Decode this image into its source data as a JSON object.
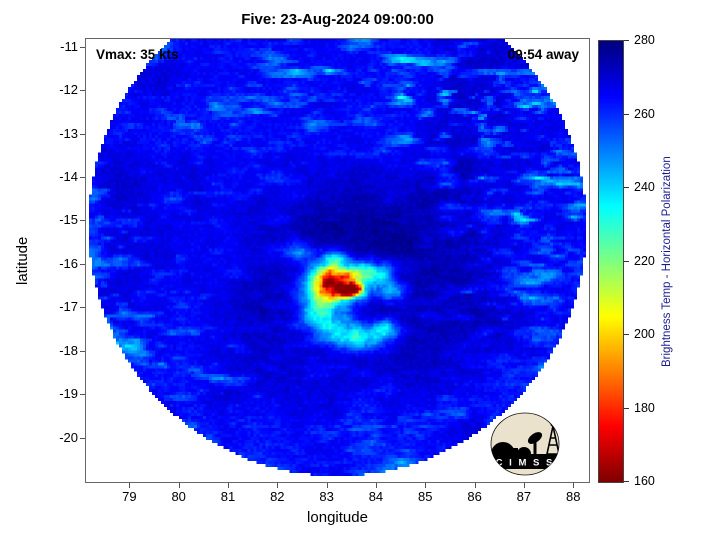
{
  "title": "Five: 23-Aug-2024 09:00:00",
  "plot": {
    "vmax_label": "Vmax: 35 kts",
    "eta_label": "09:54 away"
  },
  "axes": {
    "xlabel": "longitude",
    "ylabel": "latitude",
    "x_ticks": [
      "79",
      "80",
      "81",
      "82",
      "83",
      "84",
      "85",
      "86",
      "87",
      "88"
    ],
    "y_ticks": [
      "-11",
      "-12",
      "-13",
      "-14",
      "-15",
      "-16",
      "-17",
      "-18",
      "-19",
      "-20"
    ]
  },
  "colorbar": {
    "label": "Brightness Temp - Horizontal Polarization",
    "ticks": [
      "280",
      "260",
      "240",
      "220",
      "200",
      "180",
      "160"
    ],
    "range": [
      160,
      280
    ]
  },
  "logo": {
    "text": "C I M S S"
  },
  "colors": {
    "swath_background_blue": "#0000ff",
    "deep_blue_max": "#000080",
    "hot_spot_red": "#cc0000",
    "page_background": "#ffffff",
    "logo_parchment": "#eae2cd",
    "colorbar_label_navy": "#1b1b8f"
  },
  "chart_data": {
    "type": "heatmap",
    "title": "Five: 23-Aug-2024 09:00:00",
    "xlabel": "longitude",
    "ylabel": "latitude",
    "xlim": [
      78.1,
      88.3
    ],
    "ylim": [
      -21.0,
      -10.8
    ],
    "x_ticks": [
      79,
      80,
      81,
      82,
      83,
      84,
      85,
      86,
      87,
      88
    ],
    "y_ticks": [
      -11,
      -12,
      -13,
      -14,
      -15,
      -16,
      -17,
      -18,
      -19,
      -20
    ],
    "annotations": [
      "Vmax: 35 kts",
      "09:54 away"
    ],
    "colorbar": {
      "label": "Brightness Temp - Horizontal Polarization",
      "min": 160,
      "max": 280,
      "tick_step": 20,
      "colormap": "jet-reversed (280 K = dark blue, 160 K = dark red)"
    },
    "description": "Circular microwave-imager swath of Tropical Cyclone Five (Vmax 35 kts) at 09:00 UTC 23 Aug 2024. Background brightness temperatures ~255-275 K (blue), cold convective streaks 230-250 K (cyan) across the north, north-east, west edge and south, and a central convective burst near 83.4E / 16.5S with minimum brightness temperatures ~165 K (yellow-orange-red core) plus a cyan comma tail curling to the south-east.",
    "swath": {
      "center_lon": 83.2,
      "center_lat": -15.1,
      "radius_lon_deg": 5.05,
      "radius_lat_deg": 5.76
    },
    "storm_center": {
      "lon": 83.4,
      "lat": -16.5,
      "min_brightness_temp_K": 165
    },
    "field": {
      "base_temp": 265,
      "streak_base": 0.28,
      "streak_regions": [
        [
          83.5,
          -11.7,
          2.0,
          0.8,
          0.9
        ],
        [
          87.2,
          -13.2,
          1.4,
          1.4,
          1.1
        ],
        [
          85.6,
          -12.3,
          1.1,
          0.7,
          0.8
        ],
        [
          78.9,
          -16.2,
          0.9,
          1.4,
          0.9
        ],
        [
          80.3,
          -18.7,
          1.1,
          0.9,
          0.55
        ],
        [
          87.3,
          -15.5,
          0.9,
          0.9,
          0.6
        ],
        [
          84.6,
          -20.1,
          1.6,
          0.7,
          0.5
        ],
        [
          80.6,
          -13.0,
          1.0,
          0.8,
          0.6
        ],
        [
          86.9,
          -17.2,
          0.9,
          0.8,
          0.5
        ]
      ],
      "warm_blobs": [
        [
          83.3,
          -15.1,
          1.6,
          0.8,
          8
        ],
        [
          85.0,
          -17.3,
          1.3,
          0.9,
          7
        ],
        [
          82.1,
          -16.8,
          0.9,
          0.7,
          6
        ],
        [
          83.5,
          -16.3,
          2.6,
          2.1,
          4
        ],
        [
          86.0,
          -14.0,
          1.6,
          1.2,
          3
        ]
      ],
      "cold_blobs": [
        [
          83.45,
          -16.58,
          0.17,
          0.11,
          105
        ],
        [
          83.28,
          -16.42,
          0.4,
          0.28,
          60
        ],
        [
          82.95,
          -16.55,
          0.28,
          0.28,
          42
        ],
        [
          83.15,
          -16.02,
          0.2,
          0.22,
          38
        ],
        [
          83.92,
          -16.18,
          0.26,
          0.18,
          34
        ],
        [
          84.3,
          -16.62,
          0.2,
          0.15,
          28
        ],
        [
          82.82,
          -17.05,
          0.28,
          0.2,
          30
        ],
        [
          83.2,
          -17.45,
          0.3,
          0.22,
          33
        ],
        [
          83.7,
          -17.72,
          0.34,
          0.2,
          30
        ],
        [
          84.18,
          -17.48,
          0.22,
          0.18,
          25
        ],
        [
          82.45,
          -15.68,
          0.22,
          0.16,
          22
        ]
      ]
    }
  }
}
